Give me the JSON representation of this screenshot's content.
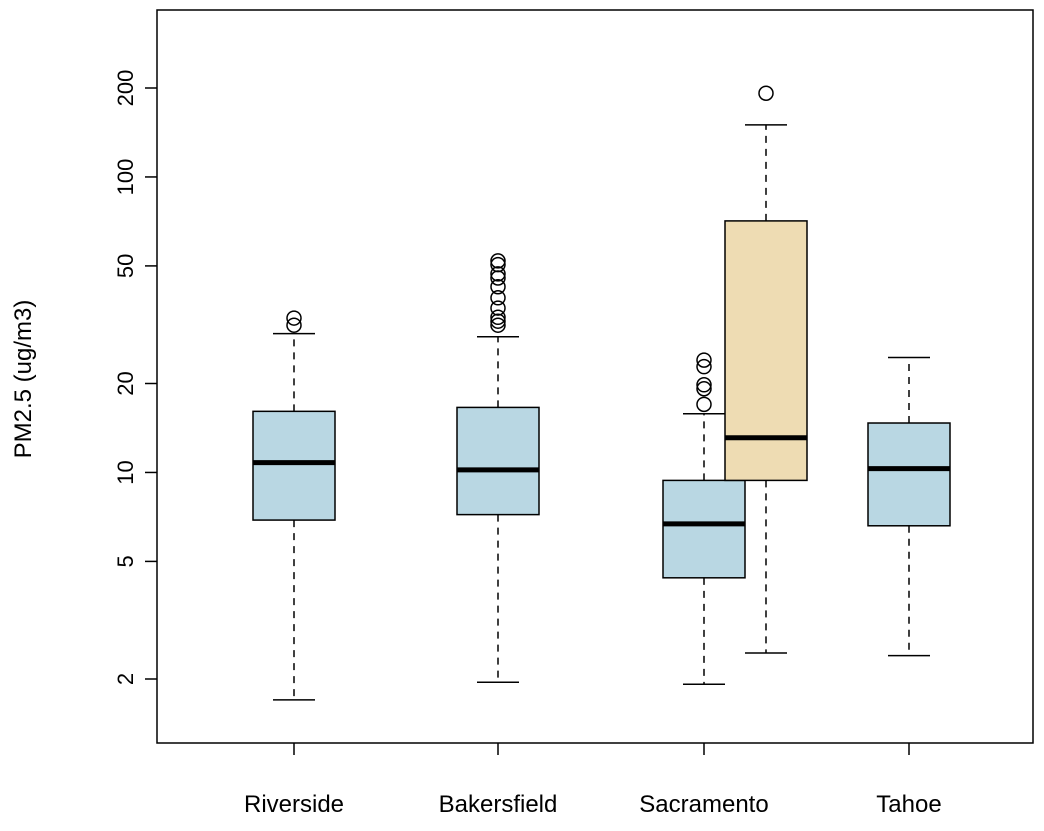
{
  "chart_data": {
    "type": "box",
    "title": "",
    "xlabel": "",
    "ylabel": "PM2.5 (ug/m3)",
    "y_scale": "log",
    "ylim": [
      1.45,
      370
    ],
    "y_ticks": [
      2,
      5,
      10,
      20,
      50,
      100,
      200
    ],
    "y_tick_labels": [
      "2",
      "5",
      "10",
      "20",
      "50",
      "100",
      "200"
    ],
    "categories": [
      "Riverside",
      "Bakersfield",
      "Sacramento",
      "Tahoe"
    ],
    "grid": false,
    "legend": "none",
    "colors": {
      "box_fill_blue": "#b9d7e3",
      "box_fill_tan": "#eedcb3",
      "stroke": "#000000"
    },
    "boxes": [
      {
        "category": "Riverside",
        "fill": "#b9d7e3",
        "whisker_low": 1.7,
        "q1": 6.9,
        "median": 10.8,
        "q3": 16.1,
        "whisker_high": 29.5,
        "outliers": [
          31.5,
          33.3
        ]
      },
      {
        "category": "Bakersfield",
        "fill": "#b9d7e3",
        "whisker_low": 1.95,
        "q1": 7.2,
        "median": 10.2,
        "q3": 16.6,
        "whisker_high": 28.8,
        "outliers": [
          31.5,
          32.5,
          33.5,
          36,
          39,
          42.5,
          45.5,
          47,
          50.5,
          52
        ]
      },
      {
        "category": "Sacramento",
        "fill": "#b9d7e3",
        "whisker_low": 1.92,
        "q1": 4.4,
        "median": 6.7,
        "q3": 9.4,
        "whisker_high": 15.8,
        "outliers": [
          17,
          19.2,
          19.8,
          22.8,
          24
        ]
      },
      {
        "category": "Sacramento",
        "fill": "#eedcb3",
        "whisker_low": 2.45,
        "q1": 9.4,
        "median": 13.1,
        "q3": 71,
        "whisker_high": 150,
        "outliers": [
          192
        ]
      },
      {
        "category": "Tahoe",
        "fill": "#b9d7e3",
        "whisker_low": 2.4,
        "q1": 6.6,
        "median": 10.3,
        "q3": 14.7,
        "whisker_high": 24.5,
        "outliers": []
      }
    ]
  }
}
